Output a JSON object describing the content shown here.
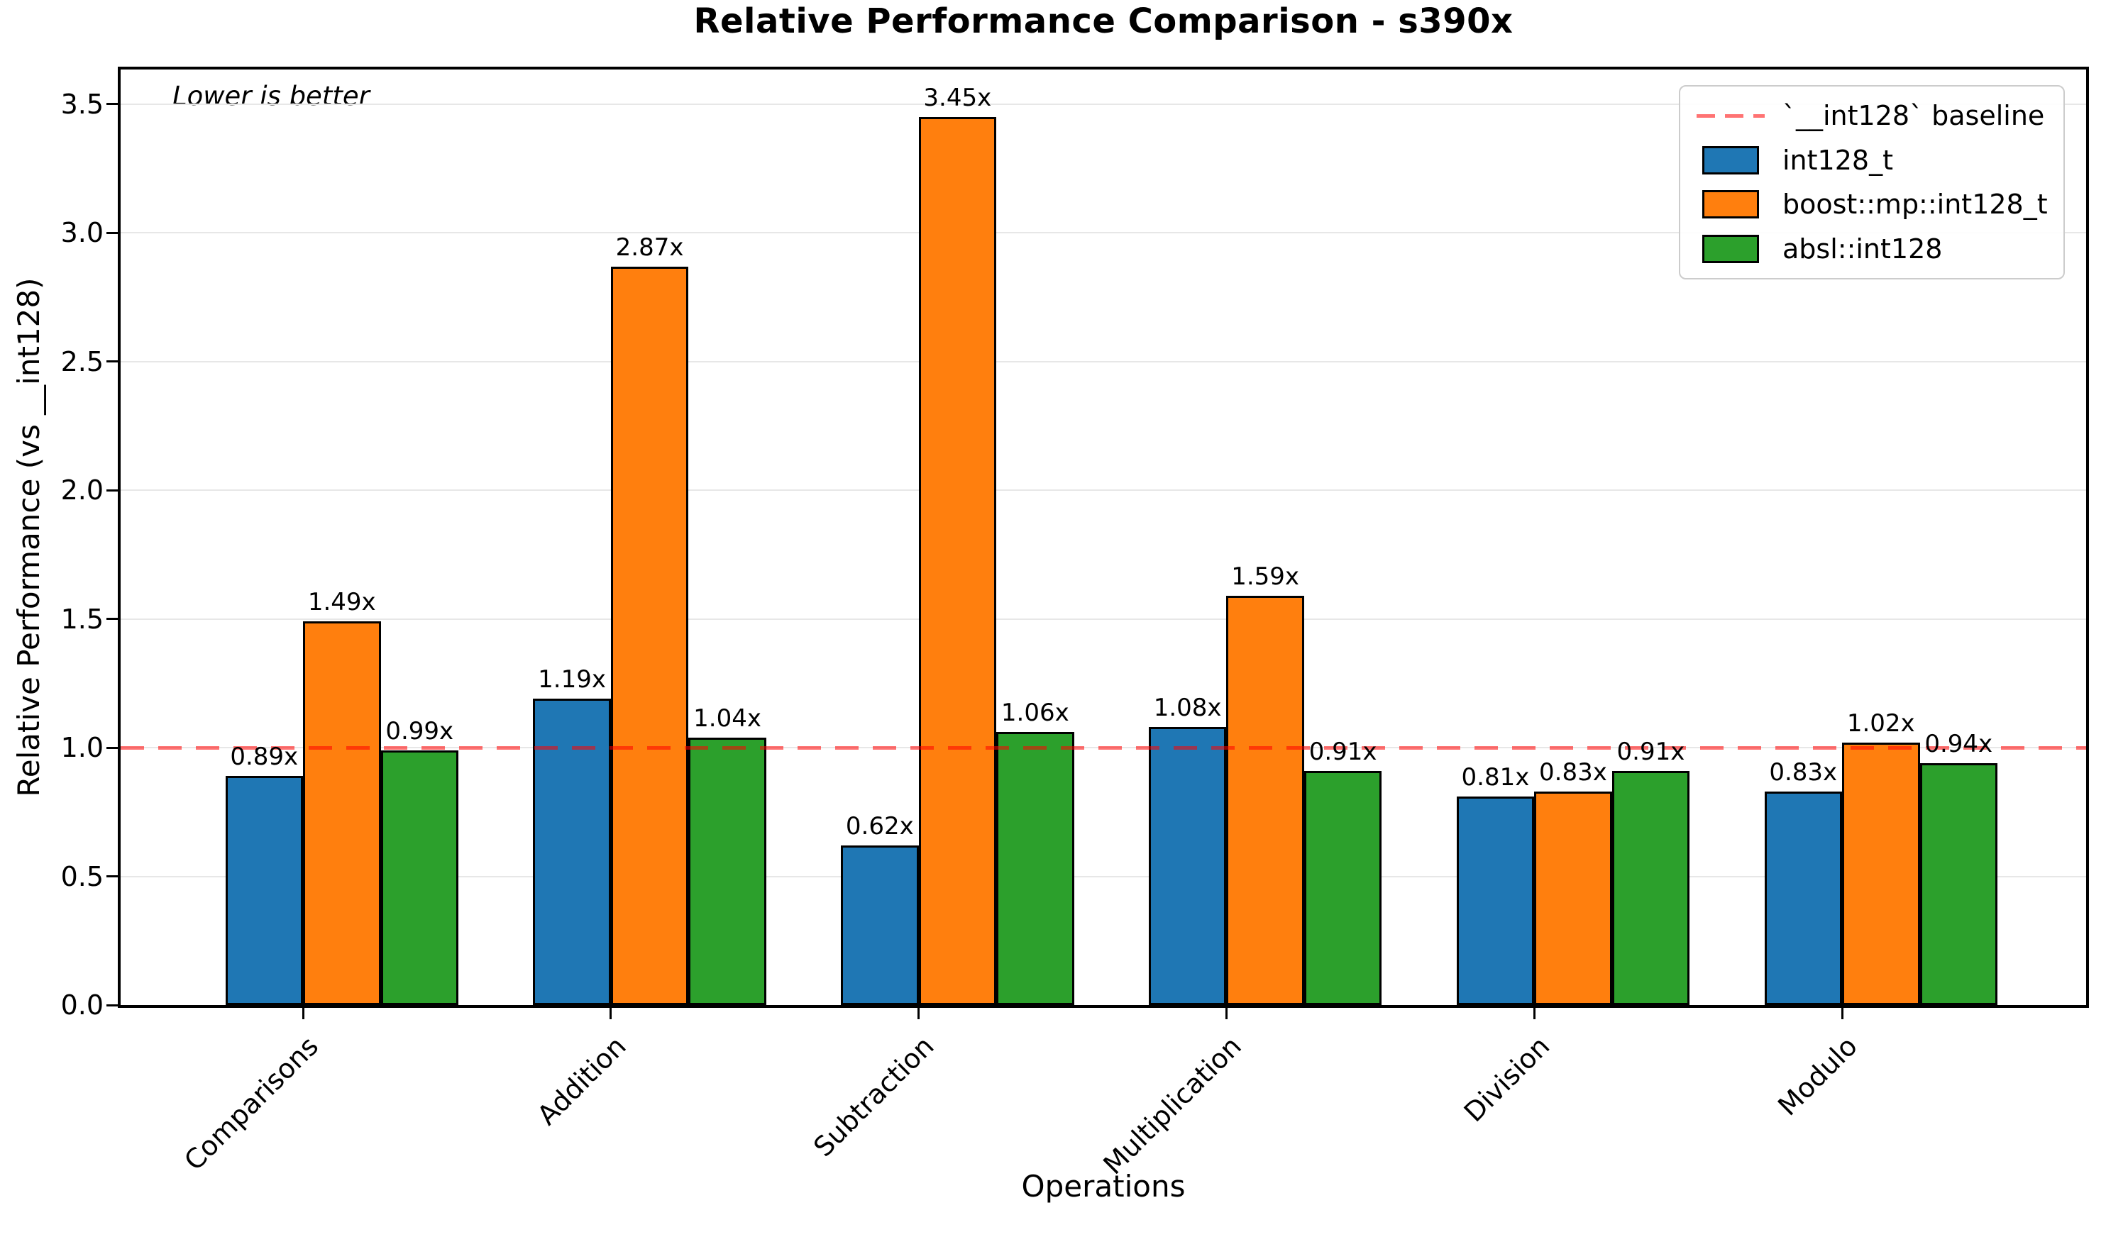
{
  "chart_data": {
    "type": "bar",
    "title": "Relative Performance Comparison - s390x",
    "xlabel": "Operations",
    "ylabel": "Relative Performance (vs __int128)",
    "annotation": "Lower is better",
    "categories": [
      "Comparisons",
      "Addition",
      "Subtraction",
      "Multiplication",
      "Division",
      "Modulo"
    ],
    "series": [
      {
        "name": "int128_t",
        "color": "#1f77b4",
        "values": [
          0.89,
          1.19,
          0.62,
          1.08,
          0.81,
          0.83
        ],
        "labels": [
          "0.89x",
          "1.19x",
          "0.62x",
          "1.08x",
          "0.81x",
          "0.83x"
        ]
      },
      {
        "name": "boost::mp::int128_t",
        "color": "#ff7f0e",
        "values": [
          1.49,
          2.87,
          3.45,
          1.59,
          0.83,
          1.02
        ],
        "labels": [
          "1.49x",
          "2.87x",
          "3.45x",
          "1.59x",
          "0.83x",
          "1.02x"
        ]
      },
      {
        "name": "absl::int128",
        "color": "#2ca02c",
        "values": [
          0.99,
          1.04,
          1.06,
          0.91,
          0.91,
          0.94
        ],
        "labels": [
          "0.99x",
          "1.04x",
          "1.06x",
          "0.91x",
          "0.91x",
          "0.94x"
        ]
      }
    ],
    "baseline": {
      "value": 1.0,
      "label": "`__int128` baseline",
      "color": "#ff0000",
      "style": "dashed"
    },
    "yticks": {
      "values": [
        0,
        0.5,
        1.0,
        1.5,
        2.0,
        2.5,
        3.0,
        3.5
      ],
      "labels": [
        "0.0",
        "0.5",
        "1.0",
        "1.5",
        "2.0",
        "2.5",
        "3.0",
        "3.5"
      ]
    },
    "ylim": [
      0,
      3.635
    ],
    "grid": true,
    "legend_position": "upper right"
  }
}
